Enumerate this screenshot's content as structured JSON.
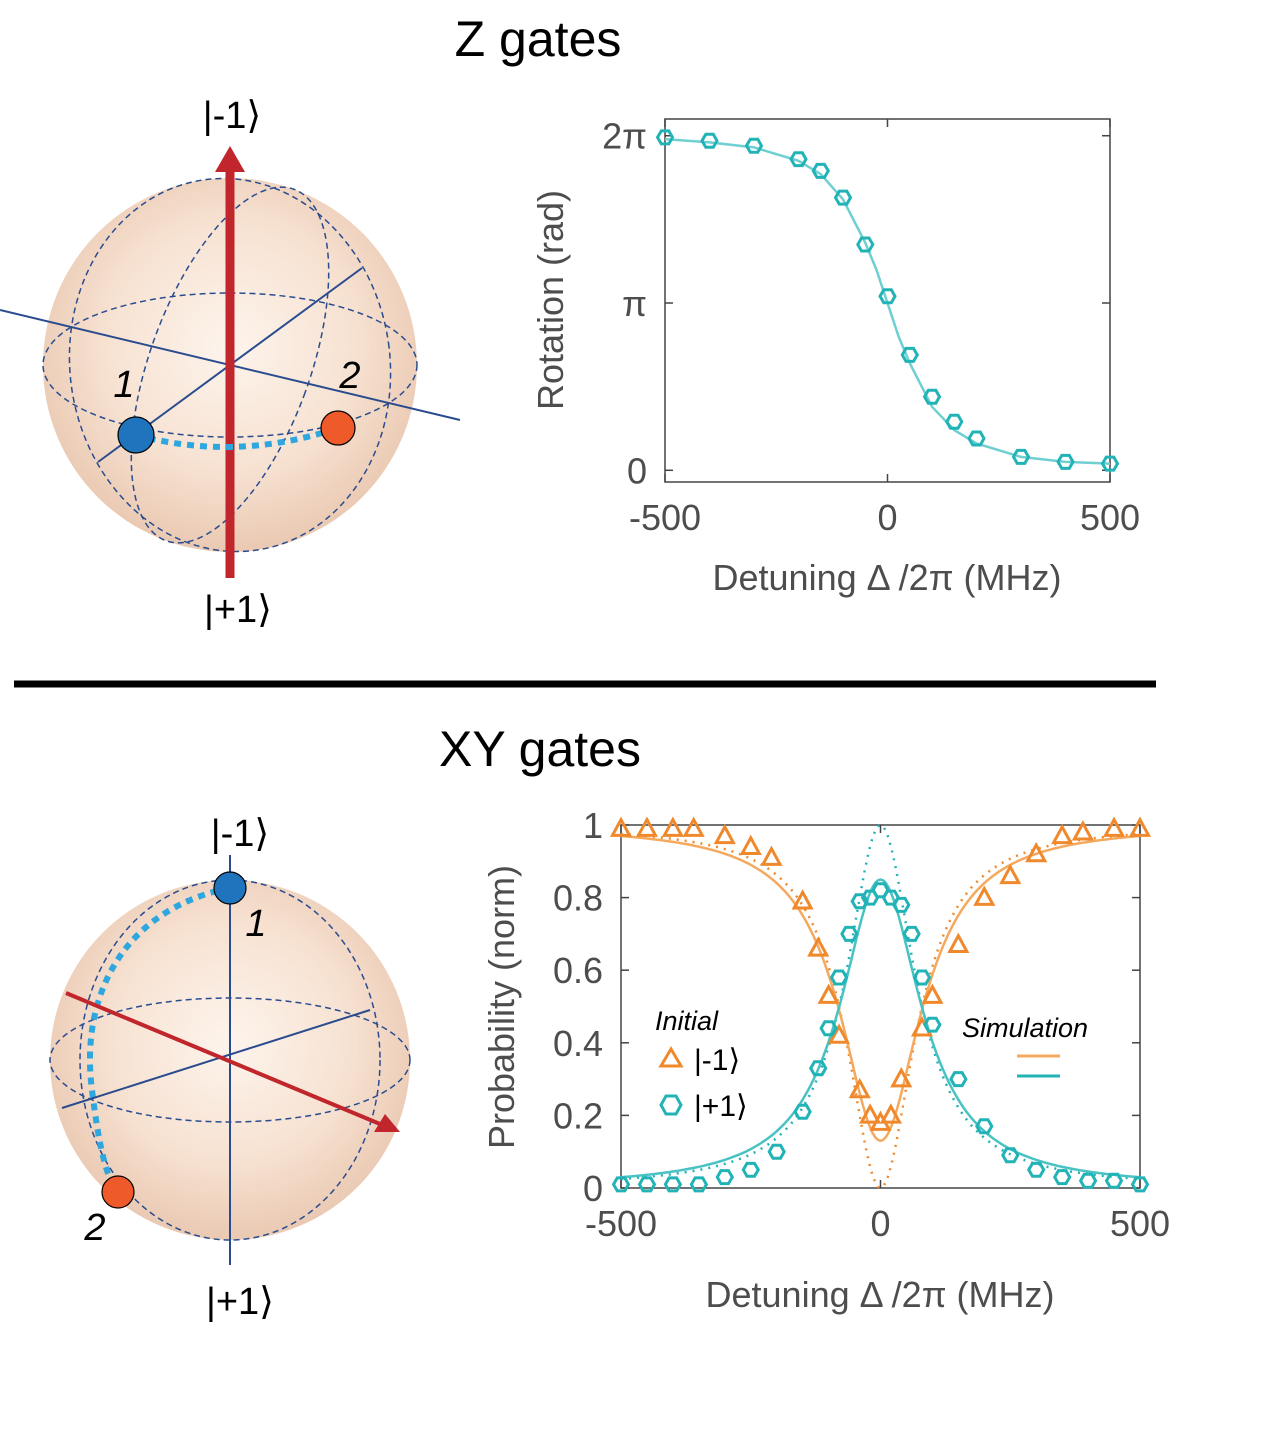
{
  "panels": {
    "z": {
      "title": "Z gates",
      "sphere": {
        "top_label": "|-1⟩",
        "bottom_label": "|+1⟩",
        "point1_label": "1",
        "point2_label": "2"
      }
    },
    "xy": {
      "title": "XY gates",
      "sphere": {
        "top_label": "|-1⟩",
        "bottom_label": "|+1⟩",
        "point1_label": "1",
        "point2_label": "2"
      }
    }
  },
  "colors": {
    "teal": "#22b3b6",
    "orange": "#f0892c",
    "orange_fit": "#f4a95f",
    "red_axis": "#c0262b",
    "blue_point": "#1f74bd",
    "orange_point": "#ef5a2b",
    "path": "#2ea7df",
    "dark_blue": "#2a4c8f",
    "axis_text": "#4d4d4d"
  },
  "chart_data": [
    {
      "type": "scatter",
      "xlabel": "Detuning Δ /2π (MHz)",
      "ylabel": "Rotation (rad)",
      "xlim": [
        -500,
        500
      ],
      "ylim": [
        -0.07,
        2.1
      ],
      "x_ticks": [
        {
          "value": -500,
          "label": "-500"
        },
        {
          "value": 0,
          "label": "0"
        },
        {
          "value": 500,
          "label": "500"
        }
      ],
      "y_ticks": [
        {
          "value": 0,
          "label": "0"
        },
        {
          "value": 1,
          "label": "π"
        },
        {
          "value": 2,
          "label": "2π"
        }
      ],
      "y_unit": "π rad",
      "grid": false,
      "series": [
        {
          "marker": "hexagon",
          "x": [
            -500,
            -400,
            -300,
            -200,
            -150,
            -100,
            -50,
            0,
            50,
            100,
            150,
            200,
            300,
            400,
            500
          ],
          "y": [
            1.99,
            1.97,
            1.94,
            1.86,
            1.79,
            1.63,
            1.35,
            1.04,
            0.69,
            0.44,
            0.29,
            0.19,
            0.08,
            0.05,
            0.04
          ]
        }
      ],
      "fit": {
        "x": [
          -500,
          -400,
          -300,
          -200,
          -150,
          -100,
          -50,
          -25,
          0,
          25,
          50,
          100,
          150,
          200,
          300,
          400,
          500
        ],
        "y": [
          1.98,
          1.96,
          1.93,
          1.85,
          1.77,
          1.62,
          1.36,
          1.2,
          1.0,
          0.8,
          0.64,
          0.38,
          0.24,
          0.16,
          0.08,
          0.05,
          0.04
        ]
      }
    },
    {
      "type": "scatter",
      "xlabel": "Detuning Δ /2π (MHz)",
      "ylabel": "Probability (norm)",
      "xlim": [
        -500,
        500
      ],
      "ylim": [
        0,
        1
      ],
      "x_ticks": [
        {
          "value": -500,
          "label": "-500"
        },
        {
          "value": 0,
          "label": "0"
        },
        {
          "value": 500,
          "label": "500"
        }
      ],
      "y_ticks": [
        {
          "value": 0,
          "label": "0"
        },
        {
          "value": 0.2,
          "label": "0.2"
        },
        {
          "value": 0.4,
          "label": "0.4"
        },
        {
          "value": 0.6,
          "label": "0.6"
        },
        {
          "value": 0.8,
          "label": "0.8"
        },
        {
          "value": 1,
          "label": "1"
        }
      ],
      "grid": false,
      "legend": {
        "title": "Initial",
        "position": "center-left",
        "entries": [
          {
            "label": "|-1⟩",
            "marker": "triangle",
            "color": "#f0892c"
          },
          {
            "label": "|+1⟩",
            "marker": "hexagon",
            "color": "#22b3b6"
          }
        ]
      },
      "sim_legend": {
        "title": "Simulation",
        "position": "center-right",
        "colors": [
          "#f4a95f",
          "#22b3b6"
        ]
      },
      "series": [
        {
          "label": "|-1⟩",
          "marker": "triangle",
          "x": [
            -500,
            -450,
            -400,
            -360,
            -300,
            -250,
            -210,
            -150,
            -120,
            -100,
            -80,
            -40,
            -20,
            0,
            20,
            40,
            80,
            100,
            150,
            200,
            250,
            300,
            350,
            390,
            450,
            500
          ],
          "y": [
            0.99,
            0.99,
            0.99,
            0.99,
            0.97,
            0.94,
            0.91,
            0.79,
            0.66,
            0.53,
            0.42,
            0.27,
            0.2,
            0.18,
            0.2,
            0.3,
            0.44,
            0.53,
            0.67,
            0.8,
            0.86,
            0.92,
            0.97,
            0.98,
            0.99,
            0.99
          ]
        },
        {
          "label": "|+1⟩",
          "marker": "hexagon",
          "x": [
            -500,
            -450,
            -400,
            -350,
            -300,
            -250,
            -200,
            -150,
            -120,
            -100,
            -80,
            -60,
            -40,
            -20,
            0,
            20,
            40,
            60,
            80,
            100,
            150,
            200,
            250,
            300,
            350,
            400,
            450,
            500
          ],
          "y": [
            0.01,
            0.01,
            0.01,
            0.01,
            0.03,
            0.05,
            0.1,
            0.21,
            0.33,
            0.44,
            0.58,
            0.7,
            0.79,
            0.8,
            0.82,
            0.8,
            0.78,
            0.7,
            0.58,
            0.45,
            0.3,
            0.17,
            0.09,
            0.05,
            0.03,
            0.02,
            0.02,
            0.01
          ]
        }
      ]
    }
  ]
}
